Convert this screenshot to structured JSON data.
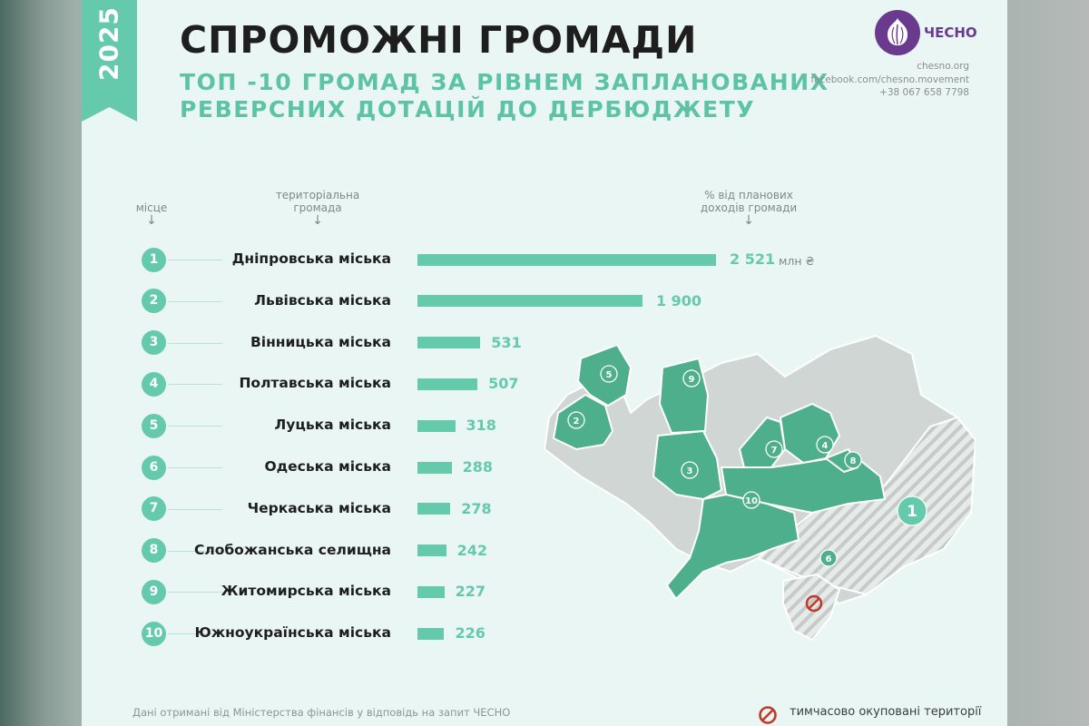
{
  "year": "2025",
  "title": "СПРОМОЖНІ ГРОМАДИ",
  "subtitle_line1": "ТОП -10 ГРОМАД ЗА РІВНЕМ ЗАПЛАНОВАНИХ",
  "subtitle_line2": "РЕВЕРСНИХ ДОТАЦІЙ ДО ДЕРБЮДЖЕТУ",
  "brand": {
    "name": "ЧЕСНО",
    "site": "chesno.org",
    "facebook": "facebook.com/chesno.movement",
    "phone": "+38 067 658 7798"
  },
  "headers": {
    "rank": "місце",
    "community_line1": "територіальна",
    "community_line2": "громада",
    "percent_line1": "% від планових",
    "percent_line2": "доходів громади",
    "arrow": "↓"
  },
  "unit": "млн ₴",
  "chart_data": {
    "type": "bar",
    "orientation": "horizontal",
    "categories": [
      "Дніпровська міська",
      "Львівська міська",
      "Вінницька міська",
      "Полтавська міська",
      "Луцька міська",
      "Одеська міська",
      "Черкаська міська",
      "Слобожанська селищна",
      "Житомирська міська",
      "Южноукраїнська міська"
    ],
    "ranks": [
      "1",
      "2",
      "3",
      "4",
      "5",
      "6",
      "7",
      "8",
      "9",
      "10"
    ],
    "values": [
      2521,
      1900,
      531,
      507,
      318,
      288,
      278,
      242,
      227,
      226
    ],
    "value_labels": [
      "2 521",
      "1 900",
      "531",
      "507",
      "318",
      "288",
      "278",
      "242",
      "227",
      "226"
    ],
    "bar_color": "#65c9ac"
  },
  "map": {
    "labels": [
      "1",
      "2",
      "3",
      "4",
      "5",
      "6",
      "7",
      "8",
      "9",
      "10"
    ],
    "highlight_color": "#4daf8c",
    "base_color": "#cfd6d3",
    "occupied_color": "#dfe3e1"
  },
  "footer": "Дані отримані від Міністерства фінансів у відповідь на запит ЧЕСНО",
  "legend": "тимчасово окуповані території",
  "colors": {
    "accent": "#65c9ac",
    "brand": "#6a3a8f",
    "title": "#1e1e1e"
  }
}
